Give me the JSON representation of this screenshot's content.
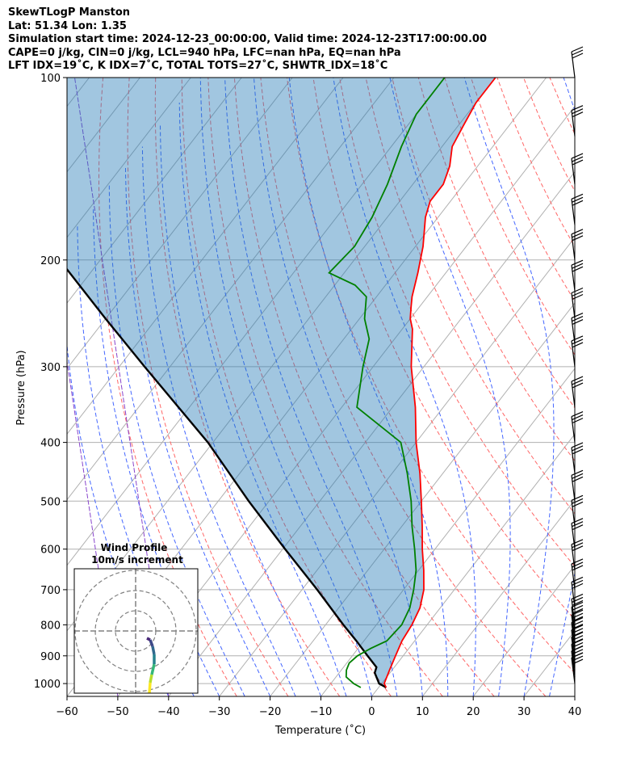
{
  "header": {
    "line1": "SkewTLogP Manston",
    "line2": "Lat: 51.34   Lon: 1.35",
    "line3": "Simulation start time: 2024-12-23_00:00:00, Valid time: 2024-12-23T17:00:00.00",
    "line4": "CAPE=0 j/kg, CIN=0 j/kg, LCL=940 hPa, LFC=nan hPa, EQ=nan hPa",
    "line5": "LFT IDX=19˚C, K IDX=7˚C, TOTAL TOTS=27˚C, SHWTR_IDX=18˚C"
  },
  "chart_data": {
    "type": "line",
    "title": "SkewTLogP Manston",
    "xlabel": "Temperature (˚C)",
    "ylabel": "Pressure (hPa)",
    "xlim": [
      -60,
      40
    ],
    "ylim": [
      1050,
      100
    ],
    "y_scale": "log",
    "x_ticks": [
      "−60",
      "−50",
      "−40",
      "−30",
      "−20",
      "−10",
      "0",
      "10",
      "20",
      "30",
      "40"
    ],
    "y_ticks": [
      "100",
      "200",
      "300",
      "400",
      "500",
      "600",
      "700",
      "800",
      "900",
      "1000"
    ],
    "grid": true,
    "series": [
      {
        "name": "Temperature",
        "color": "#ff0000",
        "p": [
          1015,
          1000,
          950,
          900,
          850,
          800,
          750,
          700,
          650,
          600,
          550,
          500,
          450,
          400,
          350,
          300,
          260,
          250,
          240,
          230,
          210,
          190,
          170,
          160,
          150,
          140,
          130,
          120,
          110,
          100
        ],
        "t": [
          1.5,
          0.5,
          -0.5,
          -1.5,
          -2.5,
          -3.0,
          -4.0,
          -6.0,
          -9.0,
          -12.5,
          -16.0,
          -20.0,
          -24.5,
          -30.0,
          -35.5,
          -42.5,
          -48.0,
          -50.0,
          -51.5,
          -53.0,
          -55.5,
          -58.5,
          -62.5,
          -64.0,
          -64.0,
          -65.5,
          -68.0,
          -69.0,
          -70.0,
          -70.0
        ]
      },
      {
        "name": "Dewpoint",
        "color": "#008000",
        "p": [
          1015,
          1000,
          975,
          950,
          925,
          900,
          875,
          850,
          800,
          750,
          700,
          650,
          600,
          550,
          500,
          450,
          400,
          350,
          300,
          270,
          250,
          230,
          220,
          210,
          190,
          170,
          150,
          130,
          115,
          100
        ],
        "t": [
          -3.5,
          -5.5,
          -8.0,
          -9.0,
          -9.5,
          -9.0,
          -7.5,
          -5.5,
          -5.0,
          -6.0,
          -8.0,
          -10.5,
          -14.0,
          -18.0,
          -22.0,
          -27.0,
          -33.0,
          -47.0,
          -52.0,
          -55.0,
          -59.0,
          -62.0,
          -66.0,
          -73.0,
          -72.0,
          -73.0,
          -75.0,
          -78.0,
          -80.0,
          -80.0
        ]
      },
      {
        "name": "Parcel",
        "color": "#000000",
        "p": [
          1015,
          1000,
          960,
          940,
          900,
          850,
          800,
          700,
          600,
          500,
          400,
          300,
          250,
          200,
          150,
          100
        ],
        "t": [
          1.5,
          -0.5,
          -3.0,
          -3.5,
          -7.0,
          -11.5,
          -16.5,
          -27.0,
          -39.5,
          -54.0,
          -71.0,
          -95.0,
          -110.0,
          -128.0,
          -153.0,
          -190.0
        ]
      }
    ],
    "wind_barbs_hpa": [
      1000,
      975,
      950,
      925,
      900,
      875,
      850,
      825,
      800,
      750,
      700,
      650,
      600,
      550,
      500,
      450,
      400,
      350,
      300,
      275,
      250,
      225,
      200,
      175,
      150,
      125,
      100
    ],
    "inset": {
      "title": "Wind Profile",
      "subtitle": "10m/s increment"
    }
  }
}
